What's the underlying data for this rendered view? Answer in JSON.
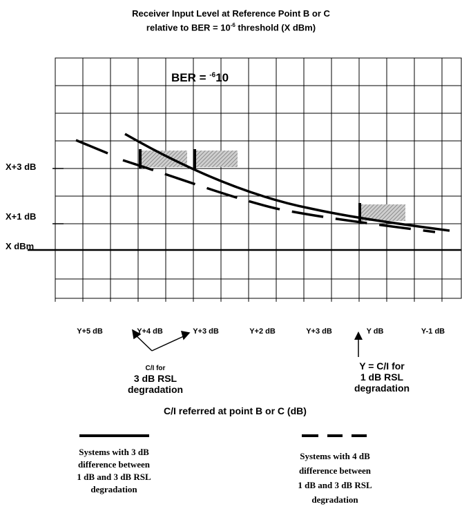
{
  "title": {
    "line1": "Receiver Input Level at Reference Point B or C",
    "line2_pre": "relative to BER = 10",
    "line2_sup": "-6",
    "line2_post": "  threshold (X dBm)"
  },
  "ber_label": {
    "pre": "BER = ",
    "sup": "-6",
    "post": "10"
  },
  "y_labels": [
    "X+3 dB",
    "X+1 dB",
    "X dBm"
  ],
  "x_ticks": [
    "Y+5 dB",
    "Y+4 dB",
    "Y+3 dB",
    "Y+2 dB",
    "Y+3 dB",
    "Y dB",
    "Y-1 dB"
  ],
  "annotations": {
    "ci_3db": {
      "prefix": "C/I for",
      "line1": "3 dB RSL",
      "line2": "degradation"
    },
    "ci_1db": {
      "line0": "Y = C/I for",
      "line1": "1 dB RSL",
      "line2": "degradation"
    }
  },
  "x_axis_label": "C/I referred at point B or C (dB)",
  "legend": {
    "solid": [
      "Systems with 3 dB",
      "difference between",
      "1 dB and 3 dB RSL",
      "degradation"
    ],
    "dashed": [
      "Systems with 4 dB",
      "difference between",
      "1 dB and 3 dB RSL",
      "degradation"
    ]
  },
  "colors": {
    "line": "#000000",
    "hatch_bg": "#bdbdbd",
    "grid": "#000000"
  }
}
